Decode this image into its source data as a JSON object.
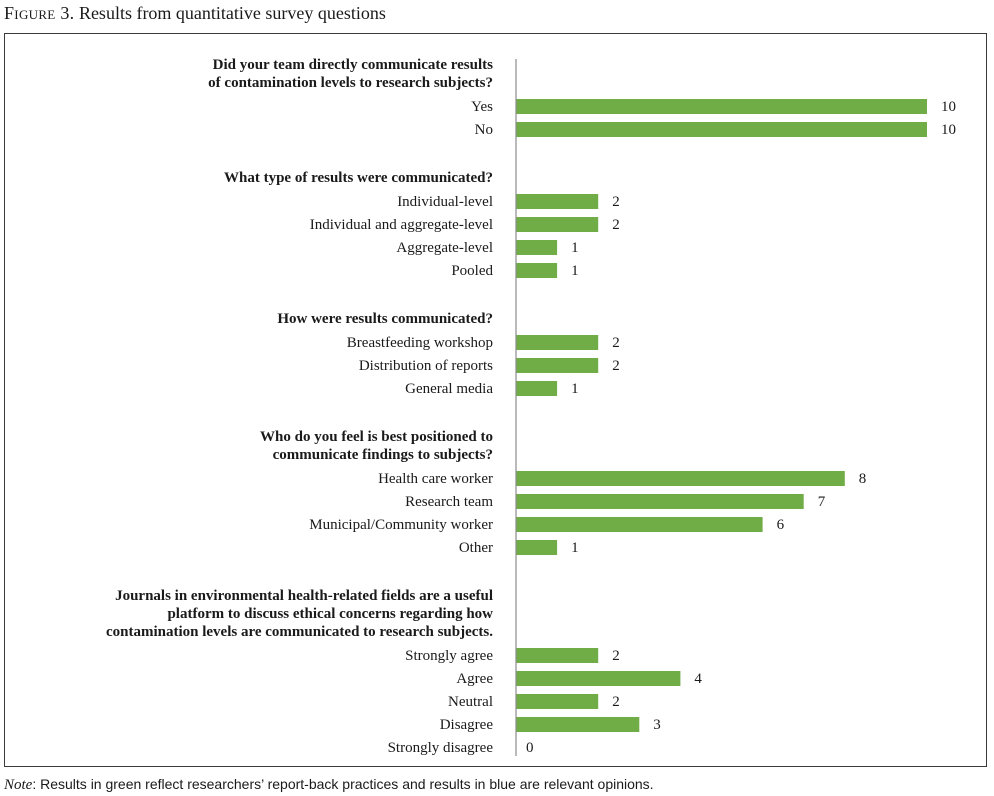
{
  "figure": {
    "label": "Figure 3.",
    "title": "Results from quantitative survey questions"
  },
  "note": {
    "label": "Note",
    "text": ": Results in green reflect researchers’ report-back practices and results in blue are relevant opinions."
  },
  "colors": {
    "bar": "#70ad47",
    "axis": "#8c8c8c",
    "frame": "#3a3a3a"
  },
  "chart_data": {
    "type": "bar",
    "orientation": "horizontal",
    "xlim": [
      0,
      10
    ],
    "grid": false,
    "legend": "none",
    "groups": [
      {
        "question": [
          "Did your team directly communicate results",
          "of contamination levels to research subjects?"
        ],
        "categories": [
          "Yes",
          "No"
        ],
        "values": [
          10,
          10
        ]
      },
      {
        "question": [
          "What type of results were communicated?"
        ],
        "categories": [
          "Individual-level",
          "Individual and aggregate-level",
          "Aggregate-level",
          "Pooled"
        ],
        "values": [
          2,
          2,
          1,
          1
        ]
      },
      {
        "question": [
          "How were results communicated?"
        ],
        "categories": [
          "Breastfeeding workshop",
          "Distribution of reports",
          "General media"
        ],
        "values": [
          2,
          2,
          1
        ]
      },
      {
        "question": [
          "Who do you feel is best positioned to",
          "communicate findings to subjects?"
        ],
        "categories": [
          "Health care worker",
          "Research team",
          "Municipal/Community worker",
          "Other"
        ],
        "values": [
          8,
          7,
          6,
          1
        ]
      },
      {
        "question": [
          "Journals in environmental health-related fields are a useful",
          "platform to discuss ethical concerns regarding how",
          "contamination levels are communicated to research subjects."
        ],
        "categories": [
          "Strongly agree",
          "Agree",
          "Neutral",
          "Disagree",
          "Strongly disagree"
        ],
        "values": [
          2,
          4,
          2,
          3,
          0
        ]
      }
    ]
  }
}
